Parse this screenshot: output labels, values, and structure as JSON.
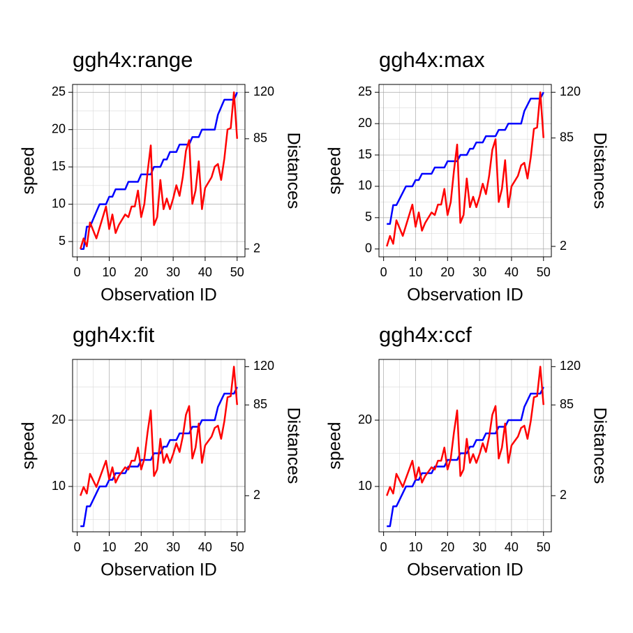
{
  "chart_data": [
    {
      "type": "line",
      "title": "ggh4x:range",
      "x_label": "Observation ID",
      "y_label": "speed",
      "y2_label": "Distances",
      "x": [
        1,
        2,
        3,
        4,
        5,
        6,
        7,
        8,
        9,
        10,
        11,
        12,
        13,
        14,
        15,
        16,
        17,
        18,
        19,
        20,
        21,
        22,
        23,
        24,
        25,
        26,
        27,
        28,
        29,
        30,
        31,
        32,
        33,
        34,
        35,
        36,
        37,
        38,
        39,
        40,
        41,
        42,
        43,
        44,
        45,
        46,
        47,
        48,
        49,
        50
      ],
      "series": [
        {
          "name": "speed",
          "color": "#0000ff",
          "values": [
            4,
            4,
            7,
            7,
            8,
            9,
            10,
            10,
            10,
            11,
            11,
            12,
            12,
            12,
            12,
            13,
            13,
            13,
            13,
            14,
            14,
            14,
            14,
            15,
            15,
            15,
            16,
            16,
            17,
            17,
            17,
            18,
            18,
            18,
            18,
            19,
            19,
            19,
            20,
            20,
            20,
            20,
            20,
            22,
            23,
            24,
            24,
            24,
            24,
            25
          ]
        },
        {
          "name": "dist",
          "color": "#ff0000",
          "axis": "y2",
          "values": [
            2,
            10,
            4,
            22,
            16,
            10,
            18,
            26,
            34,
            17,
            28,
            14,
            20,
            24,
            28,
            26,
            34,
            34,
            46,
            26,
            36,
            60,
            80,
            20,
            26,
            54,
            32,
            40,
            32,
            40,
            50,
            42,
            56,
            76,
            84,
            36,
            46,
            68,
            32,
            48,
            52,
            56,
            64,
            66,
            54,
            70,
            92,
            93,
            120,
            85
          ]
        }
      ],
      "xlim": [
        -1.45,
        52.45
      ],
      "xticks": [
        0,
        10,
        20,
        30,
        40,
        50
      ],
      "ylim": [
        2.95,
        26.05
      ],
      "yticks": [
        5,
        10,
        15,
        20,
        25
      ],
      "y2lim": [
        -3.9,
        125.9
      ],
      "y2ticks": [
        2,
        85,
        120
      ],
      "grid": true
    },
    {
      "type": "line",
      "title": "ggh4x:max",
      "x_label": "Observation ID",
      "y_label": "speed",
      "y2_label": "Distances",
      "x": [
        1,
        2,
        3,
        4,
        5,
        6,
        7,
        8,
        9,
        10,
        11,
        12,
        13,
        14,
        15,
        16,
        17,
        18,
        19,
        20,
        21,
        22,
        23,
        24,
        25,
        26,
        27,
        28,
        29,
        30,
        31,
        32,
        33,
        34,
        35,
        36,
        37,
        38,
        39,
        40,
        41,
        42,
        43,
        44,
        45,
        46,
        47,
        48,
        49,
        50
      ],
      "series": [
        {
          "name": "speed",
          "color": "#0000ff",
          "values": [
            4,
            4,
            7,
            7,
            8,
            9,
            10,
            10,
            10,
            11,
            11,
            12,
            12,
            12,
            12,
            13,
            13,
            13,
            13,
            14,
            14,
            14,
            14,
            15,
            15,
            15,
            16,
            16,
            17,
            17,
            17,
            18,
            18,
            18,
            18,
            19,
            19,
            19,
            20,
            20,
            20,
            20,
            20,
            22,
            23,
            24,
            24,
            24,
            24,
            25
          ]
        },
        {
          "name": "dist",
          "color": "#ff0000",
          "axis": "y2",
          "values": [
            2,
            10,
            4,
            22,
            16,
            10,
            18,
            26,
            34,
            17,
            28,
            14,
            20,
            24,
            28,
            26,
            34,
            34,
            46,
            26,
            36,
            60,
            80,
            20,
            26,
            54,
            32,
            40,
            32,
            40,
            50,
            42,
            56,
            76,
            84,
            36,
            46,
            68,
            32,
            48,
            52,
            56,
            64,
            66,
            54,
            70,
            92,
            93,
            120,
            85
          ]
        }
      ],
      "xlim": [
        -1.45,
        52.45
      ],
      "xticks": [
        0,
        10,
        20,
        30,
        40,
        50
      ],
      "ylim": [
        -1.25,
        26.25
      ],
      "yticks": [
        0,
        5,
        10,
        15,
        20,
        25
      ],
      "y2lim": [
        -6,
        126
      ],
      "y2ticks": [
        2,
        85,
        120
      ],
      "grid": true
    },
    {
      "type": "line",
      "title": "ggh4x:fit",
      "x_label": "Observation ID",
      "y_label": "speed",
      "y2_label": "Distances",
      "x": [
        1,
        2,
        3,
        4,
        5,
        6,
        7,
        8,
        9,
        10,
        11,
        12,
        13,
        14,
        15,
        16,
        17,
        18,
        19,
        20,
        21,
        22,
        23,
        24,
        25,
        26,
        27,
        28,
        29,
        30,
        31,
        32,
        33,
        34,
        35,
        36,
        37,
        38,
        39,
        40,
        41,
        42,
        43,
        44,
        45,
        46,
        47,
        48,
        49,
        50
      ],
      "series": [
        {
          "name": "speed",
          "color": "#0000ff",
          "values": [
            4,
            4,
            7,
            7,
            8,
            9,
            10,
            10,
            10,
            11,
            11,
            12,
            12,
            12,
            12,
            13,
            13,
            13,
            13,
            14,
            14,
            14,
            14,
            15,
            15,
            15,
            16,
            16,
            17,
            17,
            17,
            18,
            18,
            18,
            18,
            19,
            19,
            19,
            20,
            20,
            20,
            20,
            20,
            22,
            23,
            24,
            24,
            24,
            24,
            25
          ]
        },
        {
          "name": "dist",
          "color": "#ff0000",
          "axis": "y2",
          "values": [
            2,
            10,
            4,
            22,
            16,
            10,
            18,
            26,
            34,
            17,
            28,
            14,
            20,
            24,
            28,
            26,
            34,
            34,
            46,
            26,
            36,
            60,
            80,
            20,
            26,
            54,
            32,
            40,
            32,
            40,
            50,
            42,
            56,
            76,
            84,
            36,
            46,
            68,
            32,
            48,
            52,
            56,
            64,
            66,
            54,
            70,
            92,
            93,
            120,
            85
          ]
        }
      ],
      "xlim": [
        -1.45,
        52.45
      ],
      "xticks": [
        0,
        10,
        20,
        30,
        40,
        50
      ],
      "ylim": [
        3.16,
        29.16
      ],
      "yticks": [
        10,
        20
      ],
      "y2lim": [
        -31,
        126.6
      ],
      "y2ticks": [
        2,
        85,
        120
      ],
      "grid": true
    },
    {
      "type": "line",
      "title": "ggh4x:ccf",
      "x_label": "Observation ID",
      "y_label": "speed",
      "y2_label": "Distances",
      "x": [
        1,
        2,
        3,
        4,
        5,
        6,
        7,
        8,
        9,
        10,
        11,
        12,
        13,
        14,
        15,
        16,
        17,
        18,
        19,
        20,
        21,
        22,
        23,
        24,
        25,
        26,
        27,
        28,
        29,
        30,
        31,
        32,
        33,
        34,
        35,
        36,
        37,
        38,
        39,
        40,
        41,
        42,
        43,
        44,
        45,
        46,
        47,
        48,
        49,
        50
      ],
      "series": [
        {
          "name": "speed",
          "color": "#0000ff",
          "values": [
            4,
            4,
            7,
            7,
            8,
            9,
            10,
            10,
            10,
            11,
            11,
            12,
            12,
            12,
            12,
            13,
            13,
            13,
            13,
            14,
            14,
            14,
            14,
            15,
            15,
            15,
            16,
            16,
            17,
            17,
            17,
            18,
            18,
            18,
            18,
            19,
            19,
            19,
            20,
            20,
            20,
            20,
            20,
            22,
            23,
            24,
            24,
            24,
            24,
            25
          ]
        },
        {
          "name": "dist",
          "color": "#ff0000",
          "axis": "y2",
          "values": [
            2,
            10,
            4,
            22,
            16,
            10,
            18,
            26,
            34,
            17,
            28,
            14,
            20,
            24,
            28,
            26,
            34,
            34,
            46,
            26,
            36,
            60,
            80,
            20,
            26,
            54,
            32,
            40,
            32,
            40,
            50,
            42,
            56,
            76,
            84,
            36,
            46,
            68,
            32,
            48,
            52,
            56,
            64,
            66,
            54,
            70,
            92,
            93,
            120,
            85
          ]
        }
      ],
      "xlim": [
        -1.45,
        52.45
      ],
      "xticks": [
        0,
        10,
        20,
        30,
        40,
        50
      ],
      "ylim": [
        3.16,
        29.16
      ],
      "yticks": [
        10,
        20
      ],
      "y2lim": [
        -31,
        126.6
      ],
      "y2ticks": [
        2,
        85,
        120
      ],
      "grid": true
    }
  ]
}
